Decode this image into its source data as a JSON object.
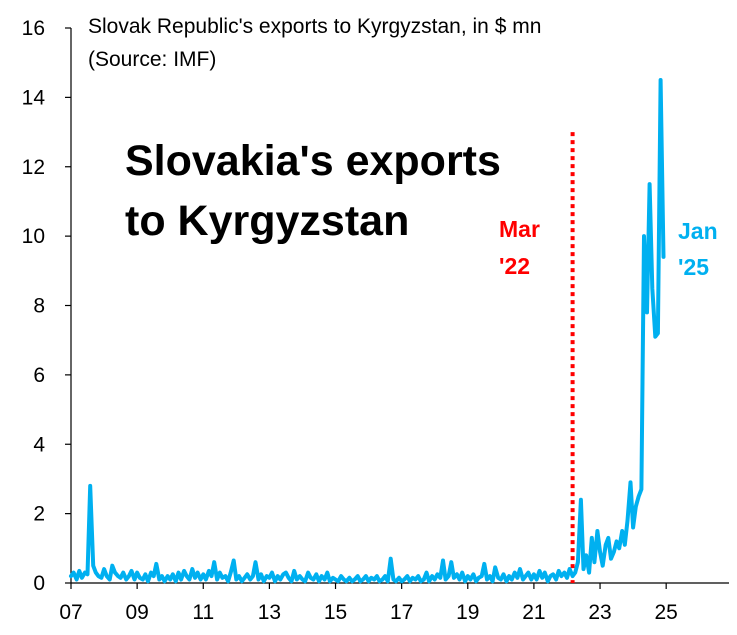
{
  "chart_data": {
    "type": "line",
    "title": "Slovak Republic's exports to Kyrgyzstan, in $ mn",
    "subtitle": "(Source: IMF)",
    "headline": [
      "Slovakia's exports",
      "to Kyrgyzstan"
    ],
    "xlabel": "",
    "ylabel": "",
    "ylim": [
      0,
      16
    ],
    "xlim": [
      2007.0,
      2026.9
    ],
    "y_ticks": [
      0,
      2,
      4,
      6,
      8,
      10,
      12,
      14,
      16
    ],
    "x_ticks": [
      {
        "label": "07",
        "value": 2007
      },
      {
        "label": "09",
        "value": 2009
      },
      {
        "label": "11",
        "value": 2011
      },
      {
        "label": "13",
        "value": 2013
      },
      {
        "label": "15",
        "value": 2015
      },
      {
        "label": "17",
        "value": 2017
      },
      {
        "label": "19",
        "value": 2019
      },
      {
        "label": "21",
        "value": 2021
      },
      {
        "label": "23",
        "value": 2023
      },
      {
        "label": "25",
        "value": 2025
      }
    ],
    "marker": {
      "x": 2022.17,
      "label_line1": "Mar",
      "label_line2": "'22",
      "color": "#ff0000"
    },
    "end_label": {
      "line1": "Jan",
      "line2": "'25"
    },
    "grid": false,
    "series": [
      {
        "name": "Exports",
        "color": "#00b0f0",
        "points": [
          [
            2007.0,
            0.2
          ],
          [
            2007.08,
            0.3
          ],
          [
            2007.17,
            0.1
          ],
          [
            2007.25,
            0.35
          ],
          [
            2007.33,
            0.15
          ],
          [
            2007.42,
            0.3
          ],
          [
            2007.5,
            0.25
          ],
          [
            2007.58,
            2.8
          ],
          [
            2007.67,
            0.5
          ],
          [
            2007.75,
            0.3
          ],
          [
            2007.83,
            0.2
          ],
          [
            2007.92,
            0.15
          ],
          [
            2008.0,
            0.4
          ],
          [
            2008.08,
            0.2
          ],
          [
            2008.17,
            0.1
          ],
          [
            2008.25,
            0.5
          ],
          [
            2008.33,
            0.3
          ],
          [
            2008.42,
            0.2
          ],
          [
            2008.5,
            0.15
          ],
          [
            2008.58,
            0.3
          ],
          [
            2008.67,
            0.1
          ],
          [
            2008.75,
            0.2
          ],
          [
            2008.83,
            0.35
          ],
          [
            2008.92,
            0.1
          ],
          [
            2009.0,
            0.3
          ],
          [
            2009.08,
            0.15
          ],
          [
            2009.17,
            0.1
          ],
          [
            2009.25,
            0.25
          ],
          [
            2009.33,
            0.05
          ],
          [
            2009.42,
            0.3
          ],
          [
            2009.5,
            0.2
          ],
          [
            2009.58,
            0.55
          ],
          [
            2009.67,
            0.1
          ],
          [
            2009.75,
            0.2
          ],
          [
            2009.83,
            0.05
          ],
          [
            2009.92,
            0.2
          ],
          [
            2010.0,
            0.1
          ],
          [
            2010.08,
            0.25
          ],
          [
            2010.17,
            0.05
          ],
          [
            2010.25,
            0.3
          ],
          [
            2010.33,
            0.1
          ],
          [
            2010.42,
            0.35
          ],
          [
            2010.5,
            0.2
          ],
          [
            2010.58,
            0.1
          ],
          [
            2010.67,
            0.4
          ],
          [
            2010.75,
            0.15
          ],
          [
            2010.83,
            0.3
          ],
          [
            2010.92,
            0.1
          ],
          [
            2011.0,
            0.25
          ],
          [
            2011.08,
            0.1
          ],
          [
            2011.17,
            0.35
          ],
          [
            2011.25,
            0.2
          ],
          [
            2011.33,
            0.6
          ],
          [
            2011.42,
            0.1
          ],
          [
            2011.5,
            0.3
          ],
          [
            2011.58,
            0.15
          ],
          [
            2011.67,
            0.2
          ],
          [
            2011.75,
            0.05
          ],
          [
            2011.83,
            0.3
          ],
          [
            2011.92,
            0.65
          ],
          [
            2012.0,
            0.1
          ],
          [
            2012.08,
            0.2
          ],
          [
            2012.17,
            0.05
          ],
          [
            2012.25,
            0.15
          ],
          [
            2012.33,
            0.25
          ],
          [
            2012.42,
            0.1
          ],
          [
            2012.5,
            0.2
          ],
          [
            2012.58,
            0.6
          ],
          [
            2012.67,
            0.1
          ],
          [
            2012.75,
            0.25
          ],
          [
            2012.83,
            0.05
          ],
          [
            2012.92,
            0.2
          ],
          [
            2013.0,
            0.15
          ],
          [
            2013.08,
            0.3
          ],
          [
            2013.17,
            0.05
          ],
          [
            2013.25,
            0.2
          ],
          [
            2013.33,
            0.1
          ],
          [
            2013.42,
            0.25
          ],
          [
            2013.5,
            0.3
          ],
          [
            2013.58,
            0.15
          ],
          [
            2013.67,
            0.05
          ],
          [
            2013.75,
            0.35
          ],
          [
            2013.83,
            0.1
          ],
          [
            2013.92,
            0.2
          ],
          [
            2014.0,
            0.1
          ],
          [
            2014.08,
            0.05
          ],
          [
            2014.17,
            0.3
          ],
          [
            2014.25,
            0.15
          ],
          [
            2014.33,
            0.1
          ],
          [
            2014.42,
            0.25
          ],
          [
            2014.5,
            0.05
          ],
          [
            2014.58,
            0.2
          ],
          [
            2014.67,
            0.1
          ],
          [
            2014.75,
            0.3
          ],
          [
            2014.83,
            0.05
          ],
          [
            2014.92,
            0.15
          ],
          [
            2015.0,
            0.1
          ],
          [
            2015.08,
            0.05
          ],
          [
            2015.17,
            0.2
          ],
          [
            2015.25,
            0.1
          ],
          [
            2015.33,
            0.05
          ],
          [
            2015.42,
            0.15
          ],
          [
            2015.5,
            0.05
          ],
          [
            2015.58,
            0.1
          ],
          [
            2015.67,
            0.2
          ],
          [
            2015.75,
            0.05
          ],
          [
            2015.83,
            0.1
          ],
          [
            2015.92,
            0.2
          ],
          [
            2016.0,
            0.05
          ],
          [
            2016.08,
            0.15
          ],
          [
            2016.17,
            0.1
          ],
          [
            2016.25,
            0.2
          ],
          [
            2016.33,
            0.05
          ],
          [
            2016.42,
            0.1
          ],
          [
            2016.5,
            0.2
          ],
          [
            2016.58,
            0.05
          ],
          [
            2016.67,
            0.7
          ],
          [
            2016.75,
            0.1
          ],
          [
            2016.83,
            0.05
          ],
          [
            2016.92,
            0.15
          ],
          [
            2017.0,
            0.05
          ],
          [
            2017.08,
            0.1
          ],
          [
            2017.17,
            0.2
          ],
          [
            2017.25,
            0.05
          ],
          [
            2017.33,
            0.15
          ],
          [
            2017.42,
            0.1
          ],
          [
            2017.5,
            0.2
          ],
          [
            2017.58,
            0.05
          ],
          [
            2017.67,
            0.1
          ],
          [
            2017.75,
            0.3
          ],
          [
            2017.83,
            0.05
          ],
          [
            2017.92,
            0.2
          ],
          [
            2018.0,
            0.1
          ],
          [
            2018.08,
            0.25
          ],
          [
            2018.17,
            0.15
          ],
          [
            2018.25,
            0.65
          ],
          [
            2018.33,
            0.1
          ],
          [
            2018.42,
            0.2
          ],
          [
            2018.5,
            0.6
          ],
          [
            2018.58,
            0.15
          ],
          [
            2018.67,
            0.25
          ],
          [
            2018.75,
            0.1
          ],
          [
            2018.83,
            0.3
          ],
          [
            2018.92,
            0.05
          ],
          [
            2019.0,
            0.2
          ],
          [
            2019.08,
            0.1
          ],
          [
            2019.17,
            0.25
          ],
          [
            2019.25,
            0.05
          ],
          [
            2019.33,
            0.15
          ],
          [
            2019.42,
            0.2
          ],
          [
            2019.5,
            0.55
          ],
          [
            2019.58,
            0.1
          ],
          [
            2019.67,
            0.2
          ],
          [
            2019.75,
            0.05
          ],
          [
            2019.83,
            0.45
          ],
          [
            2019.92,
            0.15
          ],
          [
            2020.0,
            0.1
          ],
          [
            2020.08,
            0.25
          ],
          [
            2020.17,
            0.05
          ],
          [
            2020.25,
            0.2
          ],
          [
            2020.33,
            0.1
          ],
          [
            2020.42,
            0.3
          ],
          [
            2020.5,
            0.15
          ],
          [
            2020.58,
            0.4
          ],
          [
            2020.67,
            0.1
          ],
          [
            2020.75,
            0.2
          ],
          [
            2020.83,
            0.3
          ],
          [
            2020.92,
            0.1
          ],
          [
            2021.0,
            0.25
          ],
          [
            2021.08,
            0.1
          ],
          [
            2021.17,
            0.35
          ],
          [
            2021.25,
            0.15
          ],
          [
            2021.33,
            0.3
          ],
          [
            2021.42,
            0.05
          ],
          [
            2021.5,
            0.2
          ],
          [
            2021.58,
            0.25
          ],
          [
            2021.67,
            0.1
          ],
          [
            2021.75,
            0.35
          ],
          [
            2021.83,
            0.2
          ],
          [
            2021.92,
            0.3
          ],
          [
            2022.0,
            0.15
          ],
          [
            2022.08,
            0.4
          ],
          [
            2022.17,
            0.2
          ],
          [
            2022.25,
            0.3
          ],
          [
            2022.33,
            0.6
          ],
          [
            2022.42,
            2.4
          ],
          [
            2022.5,
            0.4
          ],
          [
            2022.58,
            0.8
          ],
          [
            2022.67,
            0.3
          ],
          [
            2022.75,
            1.3
          ],
          [
            2022.83,
            0.6
          ],
          [
            2022.92,
            1.5
          ],
          [
            2023.0,
            0.9
          ],
          [
            2023.08,
            0.5
          ],
          [
            2023.17,
            1.1
          ],
          [
            2023.25,
            1.3
          ],
          [
            2023.33,
            0.7
          ],
          [
            2023.42,
            0.9
          ],
          [
            2023.5,
            1.2
          ],
          [
            2023.58,
            1.0
          ],
          [
            2023.67,
            1.5
          ],
          [
            2023.75,
            1.1
          ],
          [
            2023.83,
            1.8
          ],
          [
            2023.92,
            2.9
          ],
          [
            2024.0,
            1.6
          ],
          [
            2024.08,
            2.2
          ],
          [
            2024.17,
            2.5
          ],
          [
            2024.25,
            2.7
          ],
          [
            2024.33,
            10.0
          ],
          [
            2024.42,
            7.8
          ],
          [
            2024.5,
            11.5
          ],
          [
            2024.58,
            8.5
          ],
          [
            2024.67,
            7.1
          ],
          [
            2024.75,
            7.2
          ],
          [
            2024.83,
            14.5
          ],
          [
            2024.92,
            9.4
          ]
        ]
      }
    ]
  }
}
